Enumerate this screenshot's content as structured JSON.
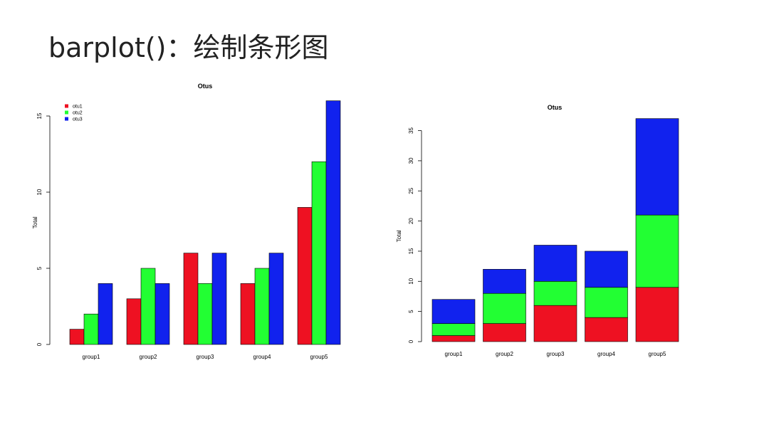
{
  "slide": {
    "title": "barplot()：绘制条形图"
  },
  "chart_data": [
    {
      "type": "bar",
      "mode": "grouped",
      "title": "Otus",
      "xlabel": "",
      "ylabel": "Total",
      "categories": [
        "group1",
        "group2",
        "group3",
        "group4",
        "group5"
      ],
      "series": [
        {
          "name": "otu1",
          "color": "#ee1122",
          "values": [
            1,
            3,
            6,
            4,
            9
          ]
        },
        {
          "name": "otu2",
          "color": "#22ff33",
          "values": [
            2,
            5,
            4,
            5,
            12
          ]
        },
        {
          "name": "otu3",
          "color": "#1122ee",
          "values": [
            4,
            4,
            6,
            6,
            16
          ]
        }
      ],
      "ylim": [
        0,
        16
      ],
      "yticks": [
        0,
        5,
        10,
        15
      ],
      "legend": "top-left",
      "grid": false
    },
    {
      "type": "bar",
      "mode": "stacked",
      "title": "Otus",
      "xlabel": "",
      "ylabel": "Total",
      "categories": [
        "group1",
        "group2",
        "group3",
        "group4",
        "group5"
      ],
      "series": [
        {
          "color": "#ee1122",
          "values": [
            1,
            3,
            6,
            4,
            9
          ]
        },
        {
          "color": "#22ff33",
          "values": [
            2,
            5,
            4,
            5,
            12
          ]
        },
        {
          "color": "#1122ee",
          "values": [
            4,
            4,
            6,
            6,
            16
          ]
        }
      ],
      "ylim": [
        0,
        37
      ],
      "yticks": [
        0,
        5,
        10,
        15,
        20,
        25,
        30,
        35
      ],
      "grid": false
    }
  ]
}
